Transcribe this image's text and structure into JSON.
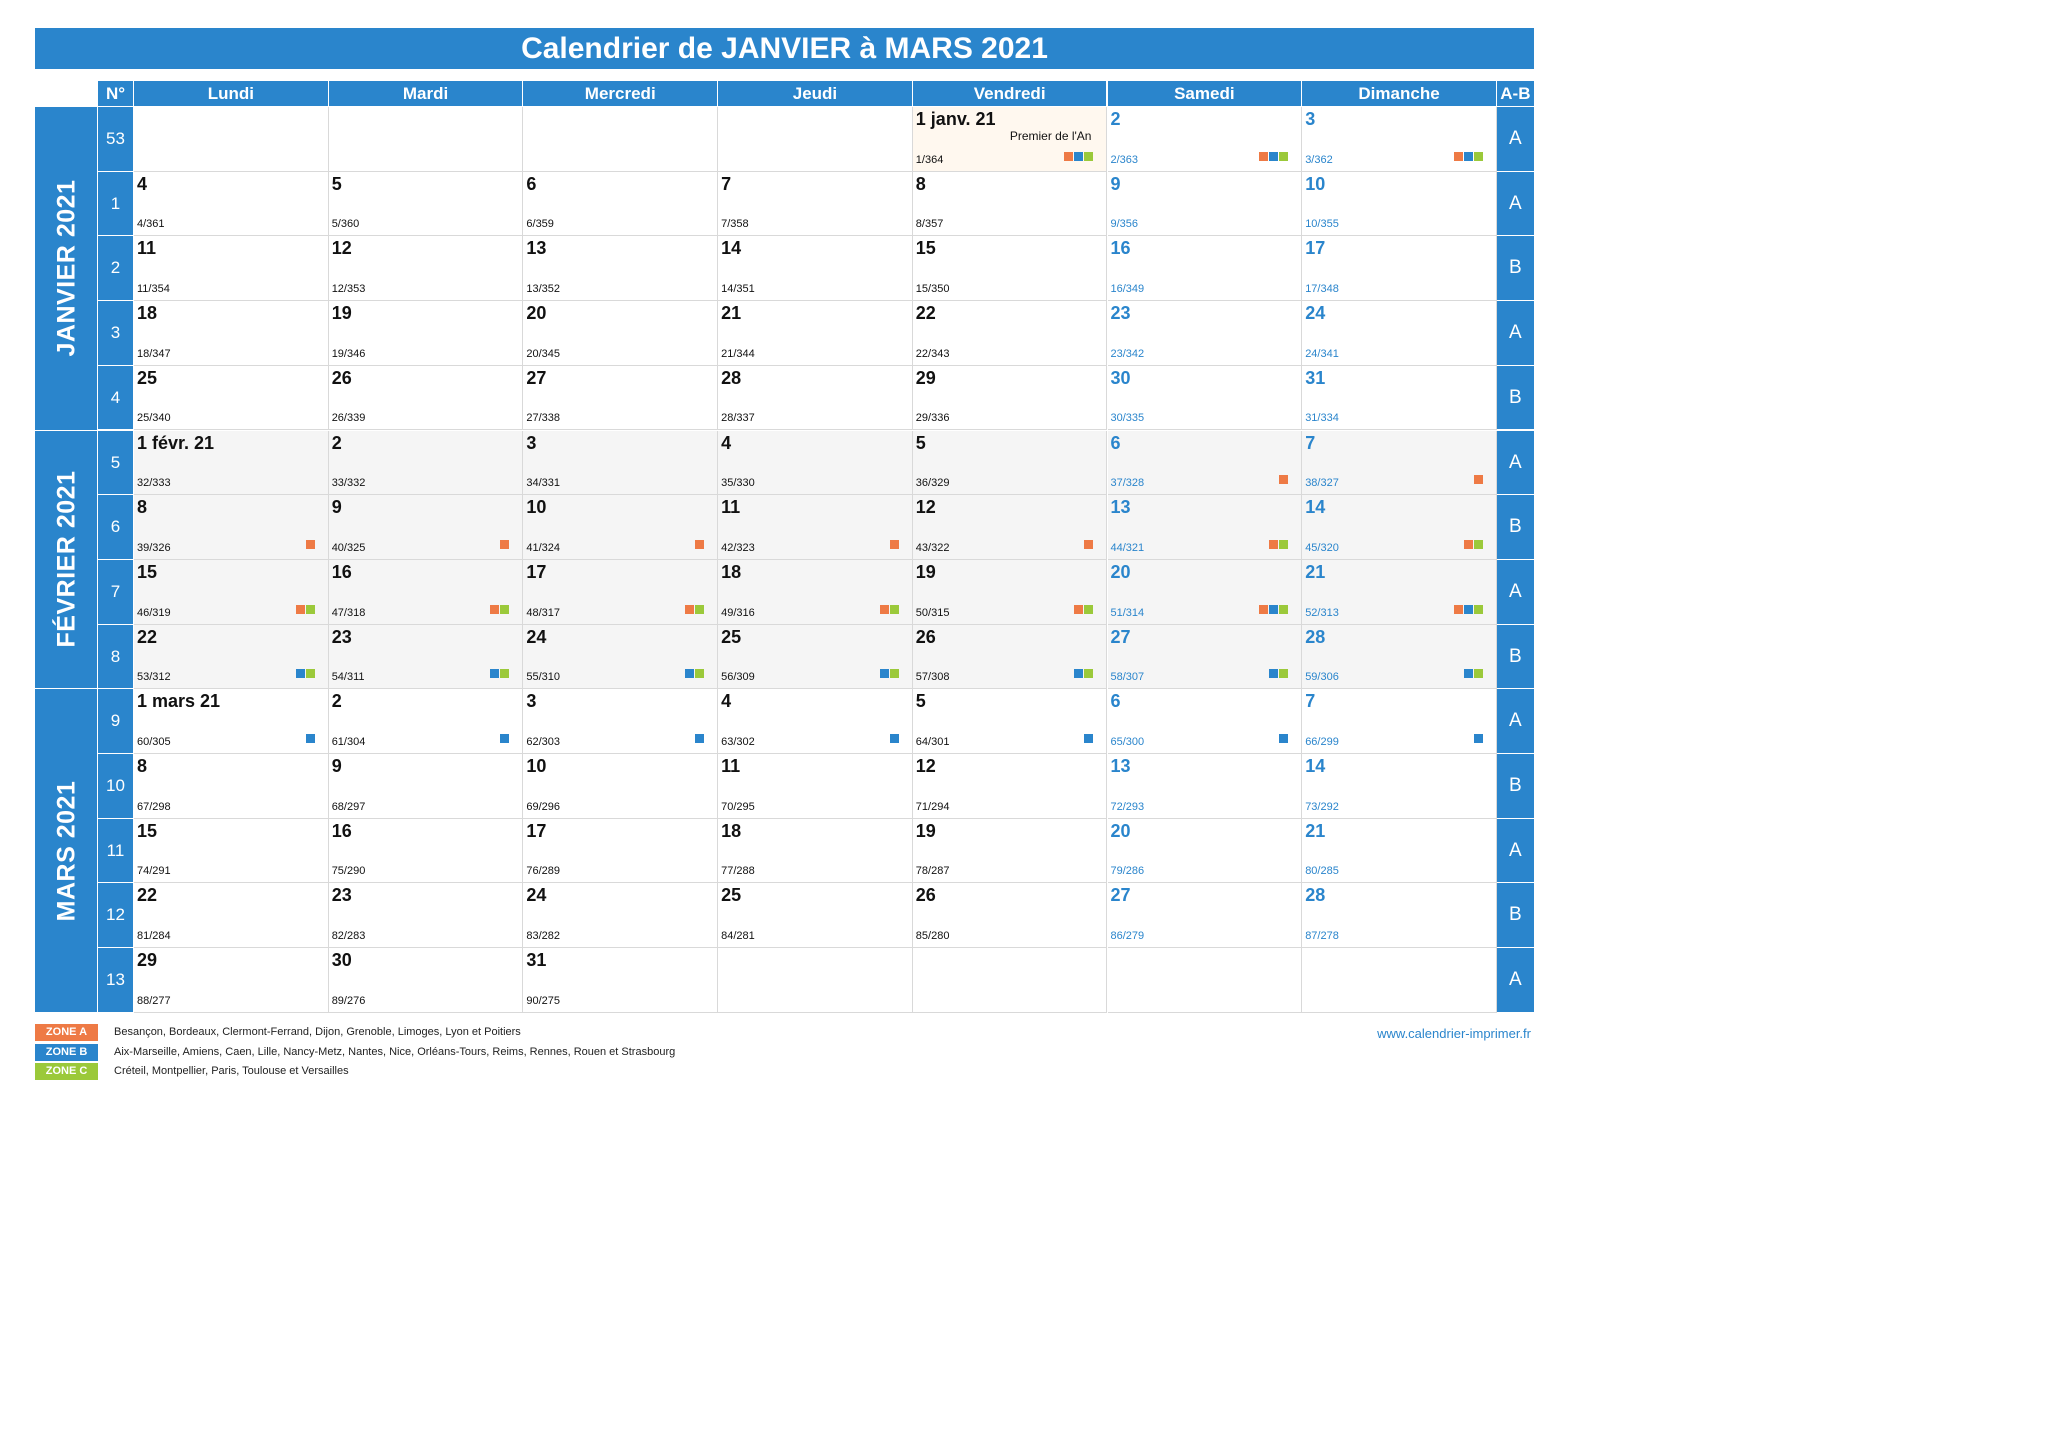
{
  "title": "Calendrier de JANVIER à MARS 2021",
  "headers": {
    "num": "N°",
    "days": [
      "Lundi",
      "Mardi",
      "Mercredi",
      "Jeudi",
      "Vendredi",
      "Samedi",
      "Dimanche"
    ],
    "ab": "A-B"
  },
  "months": [
    {
      "label": "JANVIER 2021",
      "rows": [
        0,
        4
      ]
    },
    {
      "label": "FÉVRIER 2021",
      "rows": [
        5,
        8
      ]
    },
    {
      "label": "MARS 2021",
      "rows": [
        9,
        13
      ]
    }
  ],
  "weeks": [
    {
      "num": "53",
      "ab": "A",
      "days": [
        null,
        null,
        null,
        null,
        {
          "d": "1 janv. 21",
          "y": "1/364",
          "hol": "Premier de l'An",
          "z": [
            "A",
            "B",
            "C"
          ]
        },
        {
          "d": "2",
          "y": "2/363",
          "z": [
            "A",
            "B",
            "C"
          ]
        },
        {
          "d": "3",
          "y": "3/362",
          "z": [
            "A",
            "B",
            "C"
          ]
        }
      ]
    },
    {
      "num": "1",
      "ab": "A",
      "days": [
        {
          "d": "4",
          "y": "4/361"
        },
        {
          "d": "5",
          "y": "5/360"
        },
        {
          "d": "6",
          "y": "6/359"
        },
        {
          "d": "7",
          "y": "7/358"
        },
        {
          "d": "8",
          "y": "8/357"
        },
        {
          "d": "9",
          "y": "9/356"
        },
        {
          "d": "10",
          "y": "10/355"
        }
      ]
    },
    {
      "num": "2",
      "ab": "B",
      "days": [
        {
          "d": "11",
          "y": "11/354"
        },
        {
          "d": "12",
          "y": "12/353"
        },
        {
          "d": "13",
          "y": "13/352"
        },
        {
          "d": "14",
          "y": "14/351"
        },
        {
          "d": "15",
          "y": "15/350"
        },
        {
          "d": "16",
          "y": "16/349"
        },
        {
          "d": "17",
          "y": "17/348"
        }
      ]
    },
    {
      "num": "3",
      "ab": "A",
      "days": [
        {
          "d": "18",
          "y": "18/347"
        },
        {
          "d": "19",
          "y": "19/346"
        },
        {
          "d": "20",
          "y": "20/345"
        },
        {
          "d": "21",
          "y": "21/344"
        },
        {
          "d": "22",
          "y": "22/343"
        },
        {
          "d": "23",
          "y": "23/342"
        },
        {
          "d": "24",
          "y": "24/341"
        }
      ]
    },
    {
      "num": "4",
      "ab": "B",
      "days": [
        {
          "d": "25",
          "y": "25/340"
        },
        {
          "d": "26",
          "y": "26/339"
        },
        {
          "d": "27",
          "y": "27/338"
        },
        {
          "d": "28",
          "y": "28/337"
        },
        {
          "d": "29",
          "y": "29/336"
        },
        {
          "d": "30",
          "y": "30/335"
        },
        {
          "d": "31",
          "y": "31/334"
        }
      ]
    },
    {
      "num": "5",
      "ab": "A",
      "days": [
        {
          "d": "1 févr. 21",
          "y": "32/333"
        },
        {
          "d": "2",
          "y": "33/332"
        },
        {
          "d": "3",
          "y": "34/331"
        },
        {
          "d": "4",
          "y": "35/330"
        },
        {
          "d": "5",
          "y": "36/329"
        },
        {
          "d": "6",
          "y": "37/328",
          "z": [
            "A"
          ]
        },
        {
          "d": "7",
          "y": "38/327",
          "z": [
            "A"
          ]
        }
      ]
    },
    {
      "num": "6",
      "ab": "B",
      "days": [
        {
          "d": "8",
          "y": "39/326",
          "z": [
            "A"
          ]
        },
        {
          "d": "9",
          "y": "40/325",
          "z": [
            "A"
          ]
        },
        {
          "d": "10",
          "y": "41/324",
          "z": [
            "A"
          ]
        },
        {
          "d": "11",
          "y": "42/323",
          "z": [
            "A"
          ]
        },
        {
          "d": "12",
          "y": "43/322",
          "z": [
            "A"
          ]
        },
        {
          "d": "13",
          "y": "44/321",
          "z": [
            "A",
            "C"
          ]
        },
        {
          "d": "14",
          "y": "45/320",
          "z": [
            "A",
            "C"
          ]
        }
      ]
    },
    {
      "num": "7",
      "ab": "A",
      "days": [
        {
          "d": "15",
          "y": "46/319",
          "z": [
            "A",
            "C"
          ]
        },
        {
          "d": "16",
          "y": "47/318",
          "z": [
            "A",
            "C"
          ]
        },
        {
          "d": "17",
          "y": "48/317",
          "z": [
            "A",
            "C"
          ]
        },
        {
          "d": "18",
          "y": "49/316",
          "z": [
            "A",
            "C"
          ]
        },
        {
          "d": "19",
          "y": "50/315",
          "z": [
            "A",
            "C"
          ]
        },
        {
          "d": "20",
          "y": "51/314",
          "z": [
            "A",
            "B",
            "C"
          ]
        },
        {
          "d": "21",
          "y": "52/313",
          "z": [
            "A",
            "B",
            "C"
          ]
        }
      ]
    },
    {
      "num": "8",
      "ab": "B",
      "days": [
        {
          "d": "22",
          "y": "53/312",
          "z": [
            "B",
            "C"
          ]
        },
        {
          "d": "23",
          "y": "54/311",
          "z": [
            "B",
            "C"
          ]
        },
        {
          "d": "24",
          "y": "55/310",
          "z": [
            "B",
            "C"
          ]
        },
        {
          "d": "25",
          "y": "56/309",
          "z": [
            "B",
            "C"
          ]
        },
        {
          "d": "26",
          "y": "57/308",
          "z": [
            "B",
            "C"
          ]
        },
        {
          "d": "27",
          "y": "58/307",
          "z": [
            "B",
            "C"
          ]
        },
        {
          "d": "28",
          "y": "59/306",
          "z": [
            "B",
            "C"
          ]
        }
      ]
    },
    {
      "num": "9",
      "ab": "A",
      "days": [
        {
          "d": "1 mars 21",
          "y": "60/305",
          "z": [
            "B"
          ]
        },
        {
          "d": "2",
          "y": "61/304",
          "z": [
            "B"
          ]
        },
        {
          "d": "3",
          "y": "62/303",
          "z": [
            "B"
          ]
        },
        {
          "d": "4",
          "y": "63/302",
          "z": [
            "B"
          ]
        },
        {
          "d": "5",
          "y": "64/301",
          "z": [
            "B"
          ]
        },
        {
          "d": "6",
          "y": "65/300",
          "z": [
            "B"
          ]
        },
        {
          "d": "7",
          "y": "66/299",
          "z": [
            "B"
          ]
        }
      ]
    },
    {
      "num": "10",
      "ab": "B",
      "days": [
        {
          "d": "8",
          "y": "67/298"
        },
        {
          "d": "9",
          "y": "68/297"
        },
        {
          "d": "10",
          "y": "69/296"
        },
        {
          "d": "11",
          "y": "70/295"
        },
        {
          "d": "12",
          "y": "71/294"
        },
        {
          "d": "13",
          "y": "72/293"
        },
        {
          "d": "14",
          "y": "73/292"
        }
      ]
    },
    {
      "num": "11",
      "ab": "A",
      "days": [
        {
          "d": "15",
          "y": "74/291"
        },
        {
          "d": "16",
          "y": "75/290"
        },
        {
          "d": "17",
          "y": "76/289"
        },
        {
          "d": "18",
          "y": "77/288"
        },
        {
          "d": "19",
          "y": "78/287"
        },
        {
          "d": "20",
          "y": "79/286"
        },
        {
          "d": "21",
          "y": "80/285"
        }
      ]
    },
    {
      "num": "12",
      "ab": "B",
      "days": [
        {
          "d": "22",
          "y": "81/284"
        },
        {
          "d": "23",
          "y": "82/283"
        },
        {
          "d": "24",
          "y": "83/282"
        },
        {
          "d": "25",
          "y": "84/281"
        },
        {
          "d": "26",
          "y": "85/280"
        },
        {
          "d": "27",
          "y": "86/279"
        },
        {
          "d": "28",
          "y": "87/278"
        }
      ]
    },
    {
      "num": "13",
      "ab": "A",
      "days": [
        {
          "d": "29",
          "y": "88/277"
        },
        {
          "d": "30",
          "y": "89/276"
        },
        {
          "d": "31",
          "y": "90/275"
        },
        null,
        null,
        null,
        null
      ]
    }
  ],
  "zones": [
    {
      "label": "ZONE A",
      "color": "#ee7a45",
      "cities": "Besançon, Bordeaux, Clermont-Ferrand, Dijon, Grenoble, Limoges, Lyon et Poitiers"
    },
    {
      "label": "ZONE B",
      "color": "#2a85cc",
      "cities": "Aix-Marseille, Amiens, Caen, Lille, Nancy-Metz, Nantes, Nice, Orléans-Tours, Reims, Rennes, Rouen et Strasbourg"
    },
    {
      "label": "ZONE C",
      "color": "#9bc93a",
      "cities": "Créteil, Montpellier, Paris, Toulouse et Versailles"
    }
  ],
  "website": "www.calendrier-imprimer.fr",
  "colors": {
    "accent": "#2a85cc",
    "weekend_text": "#2a85cc",
    "feb_background": "#f5f5f5",
    "holiday_background": "#fff8ef"
  }
}
